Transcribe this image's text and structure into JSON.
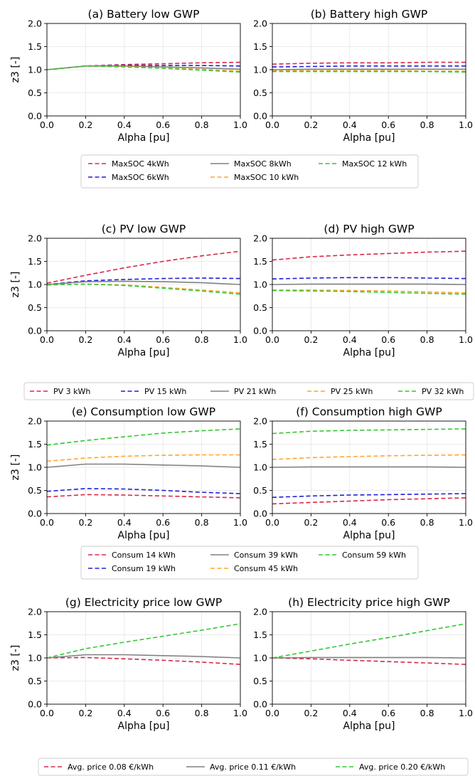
{
  "chart_data": [
    {
      "type": "line",
      "title": "(a) Battery low GWP",
      "xlabel": "Alpha [pu]",
      "ylabel": "z3 [-]",
      "xlim": [
        0,
        1
      ],
      "ylim": [
        0,
        2
      ],
      "xticks": [
        "0.0",
        "0.2",
        "0.4",
        "0.6",
        "0.8",
        "1.0"
      ],
      "yticks": [
        "0.0",
        "0.5",
        "1.0",
        "1.5",
        "2.0"
      ],
      "grid": true,
      "x": [
        0,
        0.2,
        0.4,
        0.6,
        0.8,
        1.0
      ],
      "series": [
        {
          "name": "MaxSOC 4kWh",
          "color": "#d6284a",
          "dash": "dashed",
          "values": [
            1.0,
            1.08,
            1.11,
            1.13,
            1.15,
            1.16
          ]
        },
        {
          "name": "MaxSOC 6kWh",
          "color": "#1f1fd8",
          "dash": "dashed",
          "values": [
            1.0,
            1.08,
            1.09,
            1.09,
            1.09,
            1.08
          ]
        },
        {
          "name": "MaxSOC 8kWh",
          "color": "#808080",
          "dash": "solid",
          "values": [
            1.0,
            1.08,
            1.08,
            1.06,
            1.04,
            1.01
          ]
        },
        {
          "name": "MaxSOC 10 kWh",
          "color": "#ffa629",
          "dash": "dashed",
          "values": [
            1.0,
            1.08,
            1.07,
            1.04,
            1.01,
            0.97
          ]
        },
        {
          "name": "MaxSOC 12 kWh",
          "color": "#32c832",
          "dash": "dashed",
          "values": [
            1.0,
            1.08,
            1.06,
            1.03,
            0.99,
            0.95
          ]
        }
      ]
    },
    {
      "type": "line",
      "title": "(b) Battery high GWP",
      "xlabel": "Alpha [pu]",
      "ylabel": "",
      "xlim": [
        0,
        1
      ],
      "ylim": [
        0,
        2
      ],
      "xticks": [
        "0.0",
        "0.2",
        "0.4",
        "0.6",
        "0.8",
        "1.0"
      ],
      "yticks": [
        "0.0",
        "0.5",
        "1.0",
        "1.5",
        "2.0"
      ],
      "grid": true,
      "x": [
        0,
        0.2,
        0.4,
        0.6,
        0.8,
        1.0
      ],
      "series": [
        {
          "name": "MaxSOC 4kWh",
          "color": "#d6284a",
          "dash": "dashed",
          "values": [
            1.12,
            1.14,
            1.15,
            1.15,
            1.16,
            1.16
          ]
        },
        {
          "name": "MaxSOC 6kWh",
          "color": "#1f1fd8",
          "dash": "dashed",
          "values": [
            1.06,
            1.07,
            1.08,
            1.08,
            1.08,
            1.08
          ]
        },
        {
          "name": "MaxSOC 8kWh",
          "color": "#808080",
          "dash": "solid",
          "values": [
            1.0,
            1.01,
            1.01,
            1.01,
            1.01,
            1.01
          ]
        },
        {
          "name": "MaxSOC 10 kWh",
          "color": "#ffa629",
          "dash": "dashed",
          "values": [
            0.98,
            0.98,
            0.98,
            0.98,
            0.97,
            0.97
          ]
        },
        {
          "name": "MaxSOC 12 kWh",
          "color": "#32c832",
          "dash": "dashed",
          "values": [
            0.96,
            0.96,
            0.96,
            0.96,
            0.96,
            0.95
          ]
        }
      ]
    },
    {
      "type": "line",
      "title": "(c) PV low GWP",
      "xlabel": "Alpha [pu]",
      "ylabel": "z3 [-]",
      "xlim": [
        0,
        1
      ],
      "ylim": [
        0,
        2
      ],
      "xticks": [
        "0.0",
        "0.2",
        "0.4",
        "0.6",
        "0.8",
        "1.0"
      ],
      "yticks": [
        "0.0",
        "0.5",
        "1.0",
        "1.5",
        "2.0"
      ],
      "grid": true,
      "x": [
        0,
        0.2,
        0.4,
        0.6,
        0.8,
        1.0
      ],
      "series": [
        {
          "name": "PV 3 kWh",
          "color": "#d6284a",
          "dash": "dashed",
          "values": [
            1.03,
            1.2,
            1.36,
            1.5,
            1.62,
            1.72
          ]
        },
        {
          "name": "PV 15 kWh",
          "color": "#1f1fd8",
          "dash": "dashed",
          "values": [
            1.0,
            1.08,
            1.11,
            1.13,
            1.14,
            1.13
          ]
        },
        {
          "name": "PV 21 kWh",
          "color": "#808080",
          "dash": "solid",
          "values": [
            1.0,
            1.06,
            1.07,
            1.06,
            1.04,
            1.0
          ]
        },
        {
          "name": "PV 25 kWh",
          "color": "#ffa629",
          "dash": "dashed",
          "values": [
            0.99,
            1.01,
            0.99,
            0.94,
            0.88,
            0.82
          ]
        },
        {
          "name": "PV 32 kWh",
          "color": "#32c832",
          "dash": "dashed",
          "values": [
            0.99,
            1.01,
            0.98,
            0.92,
            0.86,
            0.79
          ]
        }
      ]
    },
    {
      "type": "line",
      "title": "(d) PV high GWP",
      "xlabel": "Alpha [pu]",
      "ylabel": "",
      "xlim": [
        0,
        1
      ],
      "ylim": [
        0,
        2
      ],
      "xticks": [
        "0.0",
        "0.2",
        "0.4",
        "0.6",
        "0.8",
        "1.0"
      ],
      "yticks": [
        "0.0",
        "0.5",
        "1.0",
        "1.5",
        "2.0"
      ],
      "grid": true,
      "x": [
        0,
        0.2,
        0.4,
        0.6,
        0.8,
        1.0
      ],
      "series": [
        {
          "name": "PV 3 kWh",
          "color": "#d6284a",
          "dash": "dashed",
          "values": [
            1.53,
            1.6,
            1.64,
            1.67,
            1.7,
            1.72
          ]
        },
        {
          "name": "PV 15 kWh",
          "color": "#1f1fd8",
          "dash": "dashed",
          "values": [
            1.12,
            1.14,
            1.15,
            1.15,
            1.14,
            1.13
          ]
        },
        {
          "name": "PV 21 kWh",
          "color": "#808080",
          "dash": "solid",
          "values": [
            1.0,
            1.01,
            1.01,
            1.01,
            1.01,
            1.0
          ]
        },
        {
          "name": "PV 25 kWh",
          "color": "#ffa629",
          "dash": "dashed",
          "values": [
            0.88,
            0.88,
            0.87,
            0.86,
            0.84,
            0.82
          ]
        },
        {
          "name": "PV 32 kWh",
          "color": "#32c832",
          "dash": "dashed",
          "values": [
            0.87,
            0.86,
            0.85,
            0.83,
            0.81,
            0.79
          ]
        }
      ]
    },
    {
      "type": "line",
      "title": "(e) Consumption low GWP",
      "xlabel": "Alpha [pu]",
      "ylabel": "z3 [-]",
      "xlim": [
        0,
        1
      ],
      "ylim": [
        0,
        2
      ],
      "xticks": [
        "0.0",
        "0.2",
        "0.4",
        "0.6",
        "0.8",
        "1.0"
      ],
      "yticks": [
        "0.0",
        "0.5",
        "1.0",
        "1.5",
        "2.0"
      ],
      "grid": true,
      "x": [
        0,
        0.2,
        0.4,
        0.6,
        0.8,
        1.0
      ],
      "series": [
        {
          "name": "Consum 14 kWh",
          "color": "#d6284a",
          "dash": "dashed",
          "values": [
            0.36,
            0.41,
            0.4,
            0.38,
            0.36,
            0.34
          ]
        },
        {
          "name": "Consum 19 kWh",
          "color": "#1f1fd8",
          "dash": "dashed",
          "values": [
            0.48,
            0.54,
            0.53,
            0.5,
            0.46,
            0.43
          ]
        },
        {
          "name": "Consum 39 kWh",
          "color": "#808080",
          "dash": "solid",
          "values": [
            1.0,
            1.07,
            1.07,
            1.05,
            1.03,
            1.0
          ]
        },
        {
          "name": "Consum 45 kWh",
          "color": "#ffa629",
          "dash": "dashed",
          "values": [
            1.13,
            1.2,
            1.24,
            1.26,
            1.27,
            1.27
          ]
        },
        {
          "name": "Consum 59 kWh",
          "color": "#32c832",
          "dash": "dashed",
          "values": [
            1.48,
            1.58,
            1.66,
            1.74,
            1.79,
            1.83
          ]
        }
      ]
    },
    {
      "type": "line",
      "title": "(f) Consumption high GWP",
      "xlabel": "Alpha [pu]",
      "ylabel": "",
      "xlim": [
        0,
        1
      ],
      "ylim": [
        0,
        2
      ],
      "xticks": [
        "0.0",
        "0.2",
        "0.4",
        "0.6",
        "0.8",
        "1.0"
      ],
      "yticks": [
        "0.0",
        "0.5",
        "1.0",
        "1.5",
        "2.0"
      ],
      "grid": true,
      "x": [
        0,
        0.2,
        0.4,
        0.6,
        0.8,
        1.0
      ],
      "series": [
        {
          "name": "Consum 14 kWh",
          "color": "#d6284a",
          "dash": "dashed",
          "values": [
            0.21,
            0.24,
            0.27,
            0.3,
            0.32,
            0.34
          ]
        },
        {
          "name": "Consum 19 kWh",
          "color": "#1f1fd8",
          "dash": "dashed",
          "values": [
            0.35,
            0.38,
            0.4,
            0.41,
            0.42,
            0.43
          ]
        },
        {
          "name": "Consum 39 kWh",
          "color": "#808080",
          "dash": "solid",
          "values": [
            1.0,
            1.01,
            1.01,
            1.01,
            1.01,
            1.0
          ]
        },
        {
          "name": "Consum 45 kWh",
          "color": "#ffa629",
          "dash": "dashed",
          "values": [
            1.17,
            1.21,
            1.23,
            1.25,
            1.26,
            1.27
          ]
        },
        {
          "name": "Consum 59 kWh",
          "color": "#32c832",
          "dash": "dashed",
          "values": [
            1.73,
            1.78,
            1.8,
            1.81,
            1.82,
            1.83
          ]
        }
      ]
    },
    {
      "type": "line",
      "title": "(g) Electricity price low GWP",
      "xlabel": "Alpha [pu]",
      "ylabel": "z3 [-]",
      "xlim": [
        0,
        1
      ],
      "ylim": [
        0,
        2
      ],
      "xticks": [
        "0.0",
        "0.2",
        "0.4",
        "0.6",
        "0.8",
        "1.0"
      ],
      "yticks": [
        "0.0",
        "0.5",
        "1.0",
        "1.5",
        "2.0"
      ],
      "grid": true,
      "x": [
        0,
        0.2,
        0.4,
        0.6,
        0.8,
        1.0
      ],
      "series": [
        {
          "name": "Avg. price 0.08 €/kWh",
          "color": "#d6284a",
          "dash": "dashed",
          "values": [
            1.0,
            1.01,
            0.98,
            0.95,
            0.91,
            0.86
          ]
        },
        {
          "name": "Avg. price 0.11 €/kWh",
          "color": "#808080",
          "dash": "solid",
          "values": [
            1.0,
            1.07,
            1.07,
            1.05,
            1.03,
            1.0
          ]
        },
        {
          "name": "Avg. price 0.20 €/kWh",
          "color": "#32c832",
          "dash": "dashed",
          "values": [
            1.0,
            1.2,
            1.34,
            1.47,
            1.6,
            1.74
          ]
        }
      ]
    },
    {
      "type": "line",
      "title": "(h) Electricity price high GWP",
      "xlabel": "Alpha [pu]",
      "ylabel": "",
      "xlim": [
        0,
        1
      ],
      "ylim": [
        0,
        2
      ],
      "xticks": [
        "0.0",
        "0.2",
        "0.4",
        "0.6",
        "0.8",
        "1.0"
      ],
      "yticks": [
        "0.0",
        "0.5",
        "1.0",
        "1.5",
        "2.0"
      ],
      "grid": true,
      "x": [
        0,
        0.2,
        0.4,
        0.6,
        0.8,
        1.0
      ],
      "series": [
        {
          "name": "Avg. price 0.08 €/kWh",
          "color": "#d6284a",
          "dash": "dashed",
          "values": [
            1.0,
            0.98,
            0.95,
            0.92,
            0.89,
            0.86
          ]
        },
        {
          "name": "Avg. price 0.11 €/kWh",
          "color": "#808080",
          "dash": "solid",
          "values": [
            1.0,
            1.01,
            1.01,
            1.01,
            1.01,
            1.0
          ]
        },
        {
          "name": "Avg. price 0.20 €/kWh",
          "color": "#32c832",
          "dash": "dashed",
          "values": [
            1.0,
            1.15,
            1.3,
            1.44,
            1.59,
            1.74
          ]
        }
      ]
    }
  ]
}
